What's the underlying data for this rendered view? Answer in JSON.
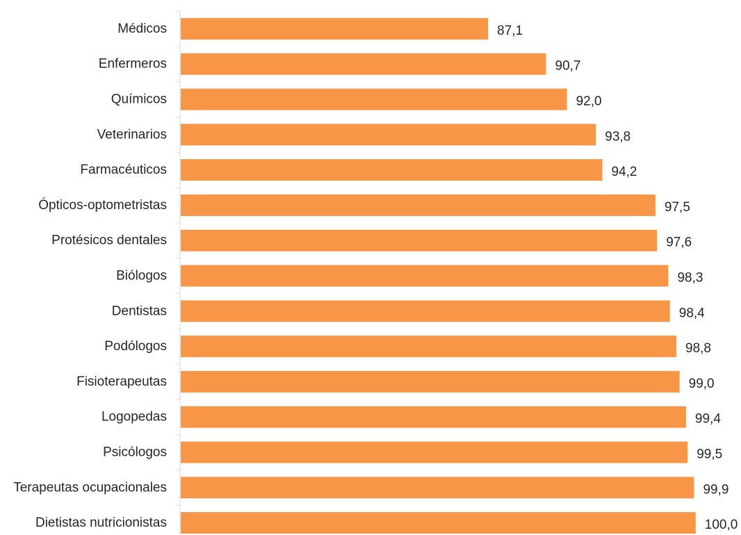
{
  "chart_data": {
    "type": "bar",
    "orientation": "horizontal",
    "categories": [
      "Médicos",
      "Enfermeros",
      "Químicos",
      "Veterinarios",
      "Farmacéuticos",
      "Ópticos-optometristas",
      "Protésicos dentales",
      "Biólogos",
      "Dentistas",
      "Podólogos",
      "Fisioterapeutas",
      "Logopedas",
      "Psicólogos",
      "Terapeutas ocupacionales",
      "Dietistas nutricionistas"
    ],
    "values": [
      87.1,
      90.7,
      92.0,
      93.8,
      94.2,
      97.5,
      97.6,
      98.3,
      98.4,
      98.8,
      99.0,
      99.4,
      99.5,
      99.9,
      100.0
    ],
    "value_labels": [
      "87,1",
      "90,7",
      "92,0",
      "93,8",
      "94,2",
      "97,5",
      "97,6",
      "98,3",
      "98,4",
      "98,8",
      "99,0",
      "99,4",
      "99,5",
      "99,9",
      "100,0"
    ],
    "title": "",
    "xlabel": "",
    "ylabel": "",
    "xlim": [
      68,
      100
    ],
    "grid": false,
    "legend": "none",
    "bar_color": "#F79646",
    "axis_color": "#D9D9D9",
    "text_color": "#262626"
  }
}
